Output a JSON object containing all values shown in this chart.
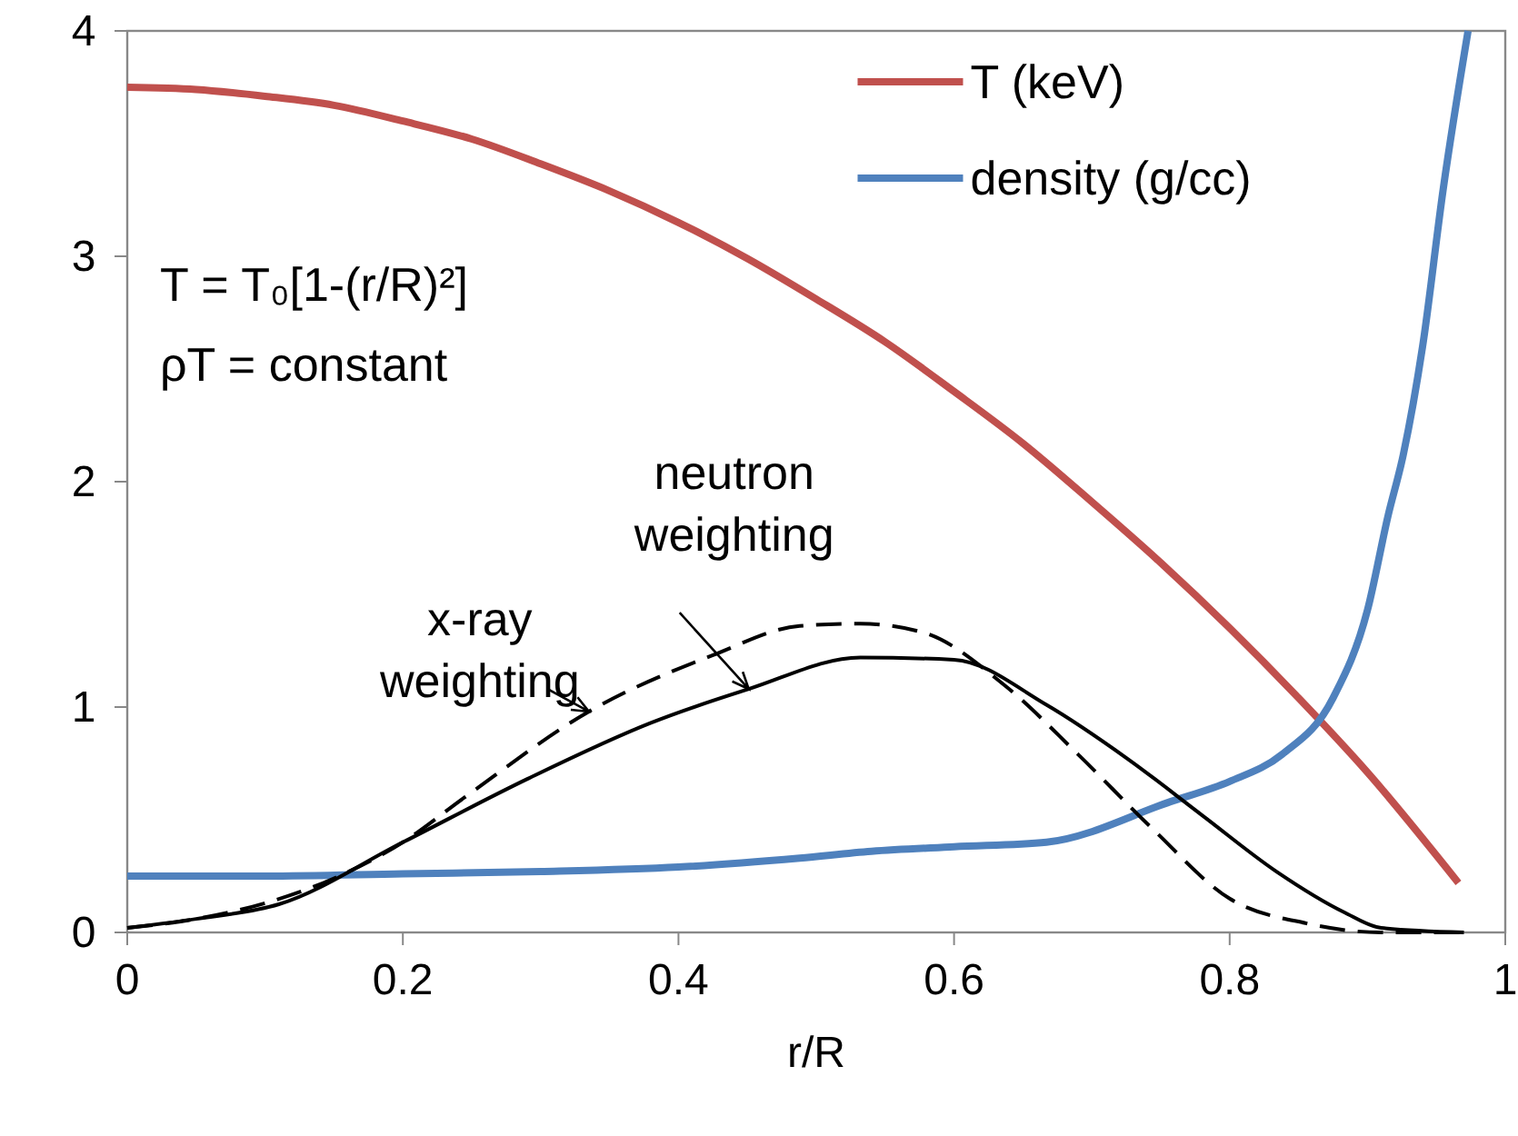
{
  "chart_data": {
    "type": "line",
    "xlabel": "r/R",
    "xlim": [
      0,
      1
    ],
    "xticks": [
      0,
      0.2,
      0.4,
      0.6,
      0.8,
      1
    ],
    "ylim": [
      0,
      4
    ],
    "yticks": [
      0,
      1,
      2,
      3,
      4
    ],
    "grid": false,
    "legend": "top right",
    "marker": "none",
    "line_style": "solid",
    "series": [
      {
        "name": "T (keV)",
        "color": "#c0504d",
        "x": [
          0,
          0.05,
          0.1,
          0.15,
          0.2,
          0.25,
          0.3,
          0.35,
          0.4,
          0.45,
          0.5,
          0.55,
          0.6,
          0.65,
          0.7,
          0.75,
          0.8,
          0.85,
          0.9,
          0.966
        ],
        "values": [
          3.75,
          3.74,
          3.71,
          3.67,
          3.6,
          3.52,
          3.41,
          3.29,
          3.15,
          2.99,
          2.81,
          2.62,
          2.4,
          2.17,
          1.91,
          1.64,
          1.35,
          1.04,
          0.71,
          0.22
        ]
      },
      {
        "name": "density (g/cc)",
        "color": "#4f81bd",
        "x": [
          0,
          0.1,
          0.2,
          0.3,
          0.4,
          0.488,
          0.54,
          0.6,
          0.667,
          0.757,
          0.8,
          0.838,
          0.875,
          0.9,
          0.915,
          0.926,
          0.94,
          0.955,
          0.973
        ],
        "values": [
          0.25,
          0.25,
          0.26,
          0.27,
          0.29,
          0.33,
          0.36,
          0.38,
          0.4,
          0.58,
          0.67,
          0.79,
          1.04,
          1.43,
          1.85,
          2.12,
          2.6,
          3.3,
          4
        ]
      },
      {
        "color": "#000000",
        "line_style": "dashed",
        "x": [
          0,
          0.05,
          0.1,
          0.15,
          0.2,
          0.245,
          0.335,
          0.425,
          0.488,
          0.532,
          0.578,
          0.636,
          0.69,
          0.744,
          0.8,
          0.856,
          0.91,
          0.97
        ],
        "values": [
          0.02,
          0.06,
          0.13,
          0.24,
          0.4,
          0.6,
          0.98,
          1.23,
          1.36,
          1.37,
          1.33,
          1.1,
          0.79,
          0.46,
          0.15,
          0.04,
          0,
          0
        ]
      },
      {
        "color": "#000000",
        "line_style": "solid",
        "x": [
          0,
          0.05,
          0.11,
          0.2,
          0.29,
          0.38,
          0.451,
          0.532,
          0.6,
          0.667,
          0.726,
          0.78,
          0.834,
          0.883,
          0.91,
          0.97
        ],
        "values": [
          0.02,
          0.06,
          0.125,
          0.4,
          0.68,
          0.93,
          1.08,
          1.22,
          1.21,
          1.01,
          0.77,
          0.52,
          0.27,
          0.09,
          0.02,
          0
        ]
      }
    ],
    "annotations": [
      "T = T₀[1-(r/R)²]",
      "ρT = constant",
      {
        "text": "x-ray weighting",
        "x": 0.335,
        "y": 0.98
      },
      {
        "text": "neutron weighting",
        "x": 0.451,
        "y": 1.08
      }
    ]
  }
}
